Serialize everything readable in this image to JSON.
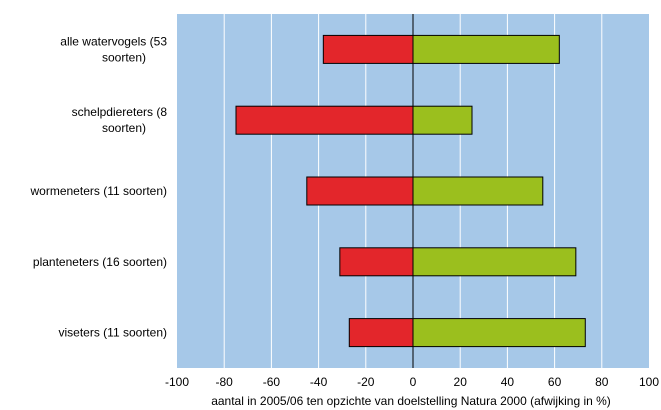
{
  "chart_data": {
    "type": "bar",
    "orientation": "horizontal",
    "stacked": "diverging",
    "categories": [
      [
        "alle watervogels (53",
        "soorten)"
      ],
      [
        "schelpdiereters (8",
        "soorten)"
      ],
      [
        "wormeneters (11 soorten)"
      ],
      [
        "planteneters (16 soorten)"
      ],
      [
        "viseters (11 soorten)"
      ]
    ],
    "series": [
      {
        "values": [
          -38,
          -75,
          -45,
          -31,
          -27
        ],
        "color": "#e3262b"
      },
      {
        "values": [
          62,
          25,
          55,
          69,
          73
        ],
        "color": "#9bbf1e"
      }
    ],
    "xticks": [
      "-100",
      "-80",
      "-60",
      "-40",
      "-20",
      "0",
      "20",
      "40",
      "60",
      "80",
      "100"
    ],
    "xlim": [
      -100,
      100
    ],
    "xlabel": "aantal in 2005/06 ten opzichte van doelstelling Natura 2000 (afwijking in %)",
    "grid": "vertical",
    "plot_background": "#a6c8e8",
    "grid_color": "#ffffff"
  }
}
